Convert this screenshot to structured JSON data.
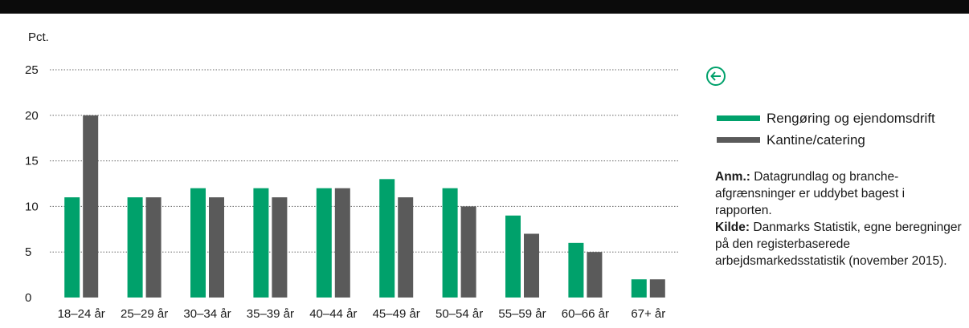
{
  "colors": {
    "top_bar": "#0b0b0b",
    "accent": "#00a16b",
    "series_1": "#00a16b",
    "series_2": "#5a5a5a",
    "grid": "#666666"
  },
  "icons": {
    "back": "arrow-left-circle-icon"
  },
  "note": {
    "anm_label": "Anm.:",
    "anm_text": " Datagrundlag og branche-afgrænsninger er uddybet bagest i rapporten.",
    "kilde_label": "Kilde:",
    "kilde_text": " Danmarks Statistik, egne beregninger på den registerbaserede arbejdsmarkedsstatistik (november 2015)."
  },
  "chart_data": {
    "type": "bar",
    "ylabel": "Pct.",
    "ylim": [
      0,
      25
    ],
    "yticks": [
      0,
      5,
      10,
      15,
      20,
      25
    ],
    "grid": true,
    "legend_position": "right",
    "categories": [
      "18–24 år",
      "25–29 år",
      "30–34 år",
      "35–39 år",
      "40–44 år",
      "45–49 år",
      "50–54 år",
      "55–59 år",
      "60–66 år",
      "67+ år"
    ],
    "series": [
      {
        "name": "Rengøring og ejendomsdrift",
        "values": [
          11,
          11,
          12,
          12,
          12,
          13,
          12,
          9,
          6,
          2
        ]
      },
      {
        "name": "Kantine/catering",
        "values": [
          20,
          11,
          11,
          11,
          12,
          11,
          10,
          7,
          5,
          2
        ]
      }
    ]
  }
}
